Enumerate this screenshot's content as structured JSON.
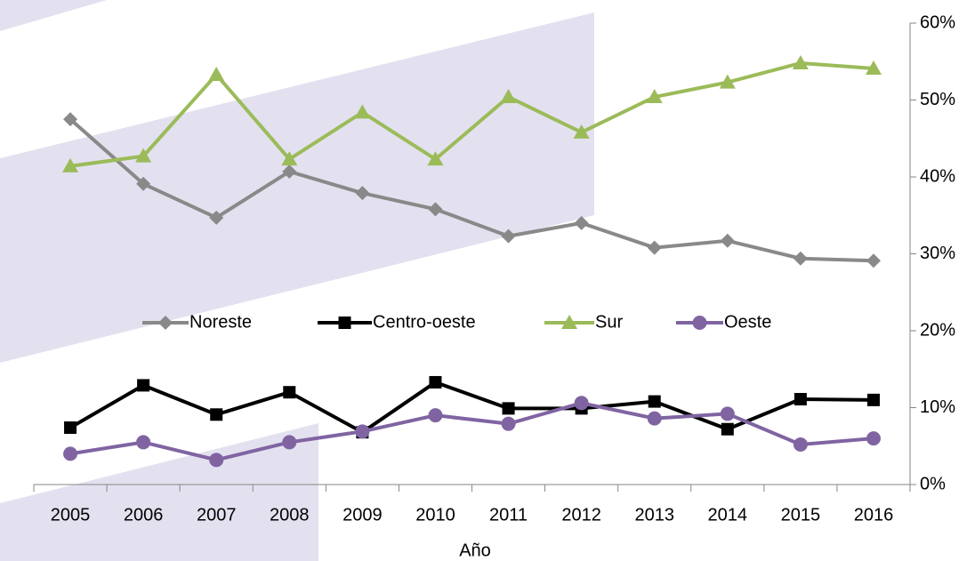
{
  "chart_data": {
    "type": "line",
    "x_label": "Año",
    "categories": [
      "2005",
      "2006",
      "2007",
      "2008",
      "2009",
      "2010",
      "2011",
      "2012",
      "2013",
      "2014",
      "2015",
      "2016"
    ],
    "series": [
      {
        "name": "Noreste",
        "color": "#898989",
        "marker": "diamond",
        "values": [
          47.5,
          39.1,
          34.7,
          40.7,
          37.9,
          35.8,
          32.3,
          34.0,
          30.8,
          31.7,
          29.4,
          29.1
        ]
      },
      {
        "name": "Centro-oeste",
        "color": "#000000",
        "marker": "square",
        "values": [
          7.4,
          12.9,
          9.1,
          12.0,
          6.8,
          13.3,
          9.9,
          9.9,
          10.8,
          7.2,
          11.1,
          11.0
        ]
      },
      {
        "name": "Sur",
        "color": "#9bbb59",
        "marker": "triangle",
        "values": [
          41.4,
          42.7,
          53.3,
          42.3,
          48.4,
          42.3,
          50.4,
          45.8,
          50.4,
          52.3,
          54.8,
          54.1
        ]
      },
      {
        "name": "Oeste",
        "color": "#8064a2",
        "marker": "circle",
        "values": [
          4.0,
          5.5,
          3.2,
          5.5,
          6.9,
          9.0,
          7.9,
          10.6,
          8.6,
          9.2,
          5.2,
          6.0
        ]
      }
    ],
    "ylim": [
      0,
      60
    ],
    "yticks": [
      {
        "value": 0,
        "label": "0%"
      },
      {
        "value": 10,
        "label": "10%"
      },
      {
        "value": 20,
        "label": "20%"
      },
      {
        "value": 30,
        "label": "30%"
      },
      {
        "value": 40,
        "label": "40%"
      },
      {
        "value": 50,
        "label": "50%"
      },
      {
        "value": 60,
        "label": "60%"
      }
    ],
    "y_axis_side": "right",
    "legend": "center"
  }
}
